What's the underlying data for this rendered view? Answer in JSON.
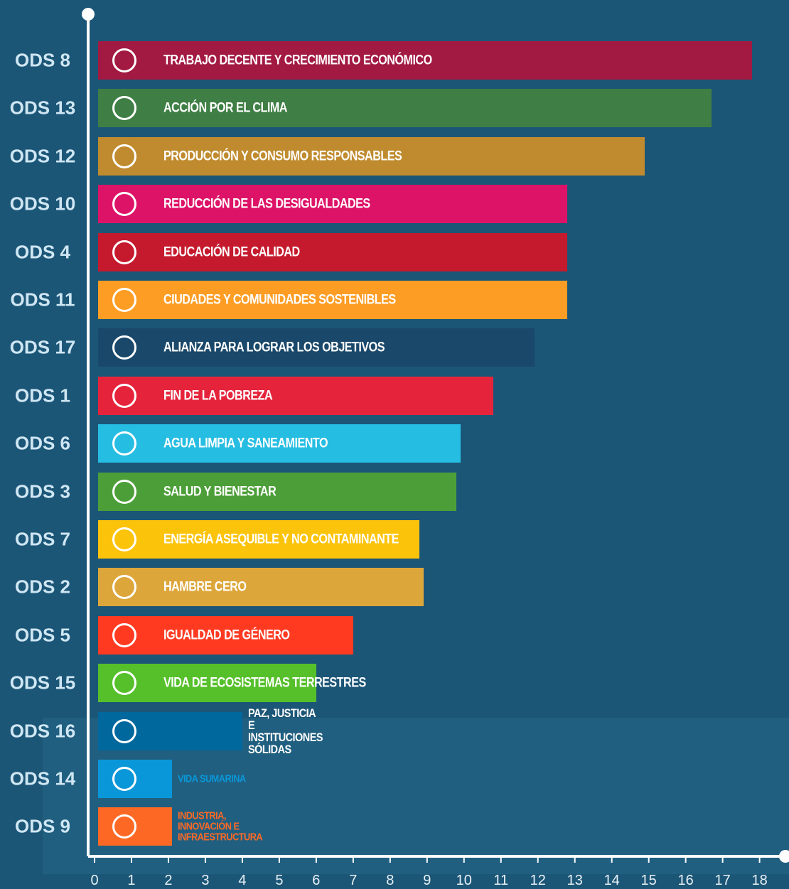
{
  "chart_data": {
    "type": "bar",
    "orientation": "horizontal",
    "categories": [
      "ODS 8",
      "ODS 13",
      "ODS 12",
      "ODS 10",
      "ODS 4",
      "ODS 11",
      "ODS 17",
      "ODS 1",
      "ODS 6",
      "ODS 3",
      "ODS 7",
      "ODS 2",
      "ODS 5",
      "ODS 15",
      "ODS 16",
      "ODS 14",
      "ODS 9"
    ],
    "goals": [
      "TRABAJO DECENTE Y CRECIMIENTO ECONÓMICO",
      "ACCIÓN POR EL CLIMA",
      "PRODUCCIÓN Y CONSUMO RESPONSABLES",
      "REDUCCIÓN DE LAS DESIGUALDADES",
      "EDUCACIÓN DE CALIDAD",
      "CIUDADES Y COMUNIDADES SOSTENIBLES",
      "ALIANZA PARA LOGRAR LOS OBJETIVOS",
      "FIN DE LA POBREZA",
      "AGUA LIMPIA Y SANEAMIENTO",
      "SALUD Y BIENESTAR",
      "ENERGÍA ASEQUIBLE Y NO CONTAMINANTE",
      "HAMBRE CERO",
      "IGUALDAD DE GÉNERO",
      "VIDA DE ECOSISTEMAS TERRESTRES",
      "PAZ, JUSTICIA E INSTITUCIONES SÓLIDAS",
      "VIDA SUMARINA",
      "INDUSTRIA, INNOVACIÓN E INFRAESTRUCTURA"
    ],
    "values": [
      17.8,
      16.7,
      14.9,
      12.8,
      12.8,
      12.8,
      11.9,
      10.8,
      9.9,
      9.8,
      8.8,
      8.9,
      7.0,
      6.0,
      4.0,
      2.1,
      2.1
    ],
    "colors": [
      "#a21942",
      "#3f7e44",
      "#bf8b2e",
      "#dd1367",
      "#c5192d",
      "#fd9d24",
      "#19486a",
      "#e5243b",
      "#26bde2",
      "#4c9f38",
      "#fcc30b",
      "#dda63a",
      "#ff3a21",
      "#56c02b",
      "#00689d",
      "#0a97d9",
      "#fd6925"
    ],
    "xlim": [
      0,
      18.7
    ],
    "xticks": [
      0,
      1,
      2,
      3,
      4,
      5,
      6,
      7,
      8,
      9,
      10,
      11,
      12,
      13,
      14,
      15,
      16,
      17,
      18
    ]
  }
}
